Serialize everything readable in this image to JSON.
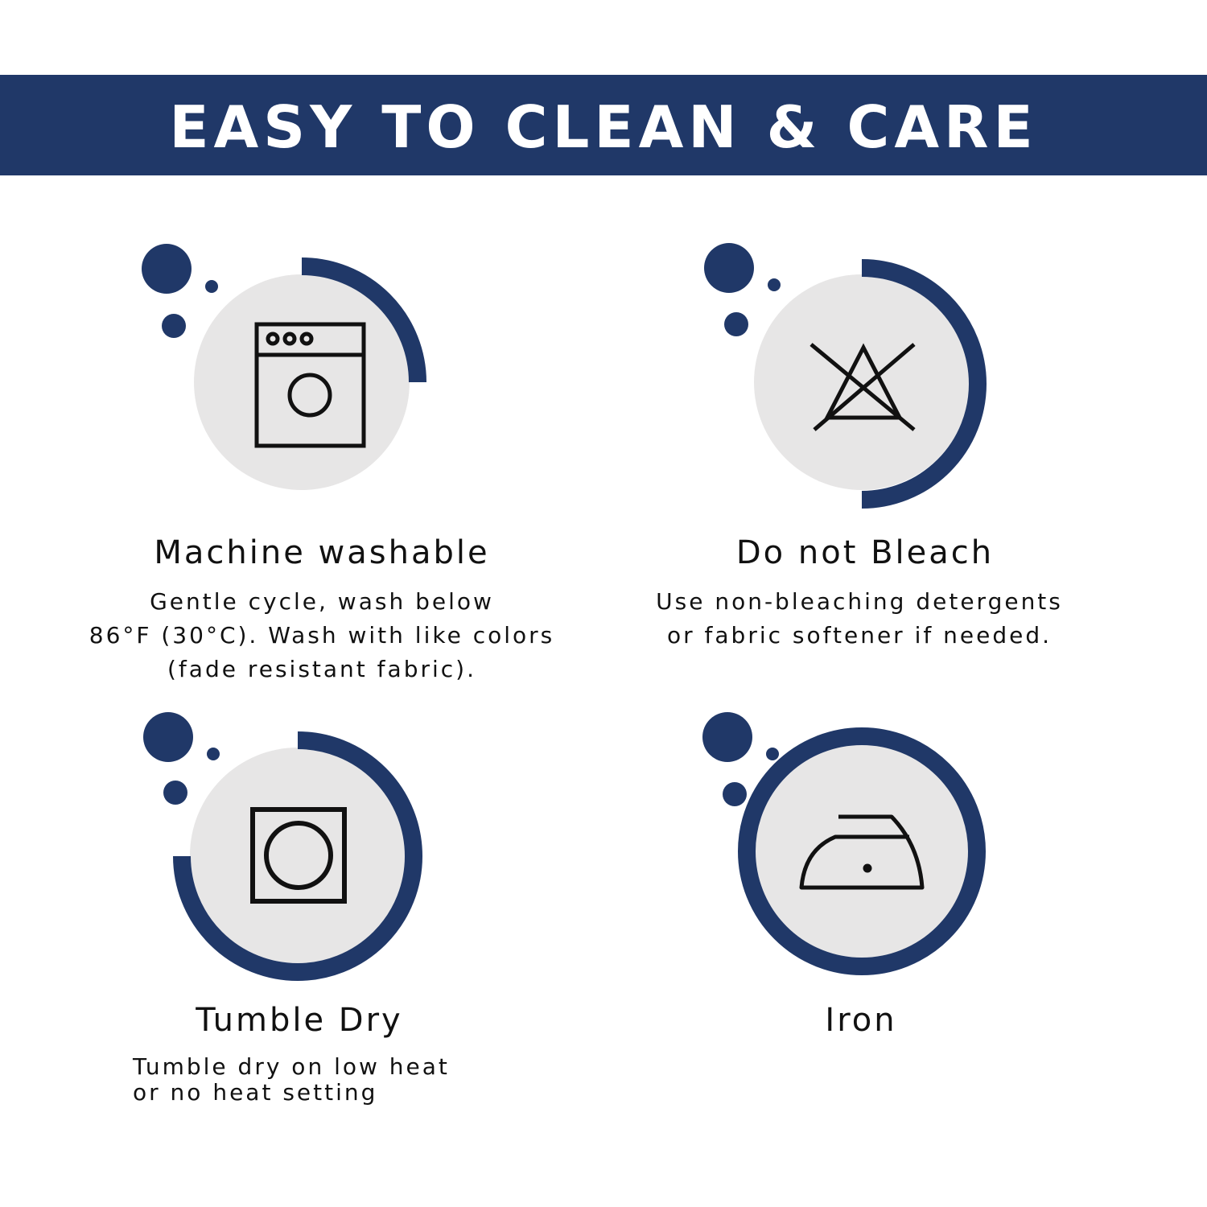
{
  "banner": {
    "title": "EASY TO CLEAN & CARE"
  },
  "colors": {
    "navy": "#203868",
    "circle_fill": "#e7e6e6",
    "icon_stroke": "#111111"
  },
  "items": [
    {
      "icon": "washing-machine-icon",
      "title": "Machine washable",
      "description": [
        "Gentle cycle, wash below",
        "86°F (30°C). Wash with like colors",
        "(fade resistant fabric)."
      ]
    },
    {
      "icon": "no-bleach-icon",
      "title": "Do not Bleach",
      "description": [
        "Use non-bleaching detergents",
        "or fabric softener if needed."
      ]
    },
    {
      "icon": "tumble-dry-icon",
      "title": "Tumble Dry",
      "description": [
        "Tumble dry on low heat",
        "or no heat setting"
      ]
    },
    {
      "icon": "iron-icon",
      "title": "Iron",
      "description": []
    }
  ]
}
